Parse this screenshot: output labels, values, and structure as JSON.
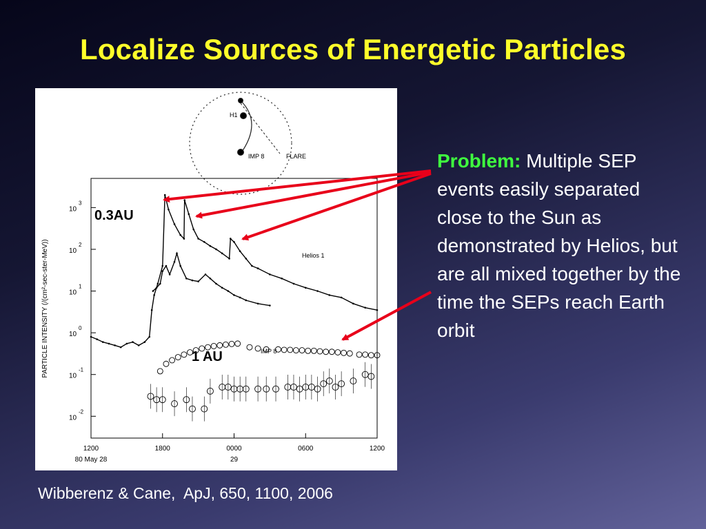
{
  "slide": {
    "title": "Localize Sources of Energetic Particles",
    "problem_label": "Problem:",
    "problem_text": " Multiple SEP events easily separated close to the Sun as demonstrated by Helios, but are all mixed together by the time the SEPs reach Earth orbit",
    "citation": "Wibberenz & Cane,  ApJ, 650, 1100, 2006",
    "colors": {
      "title": "#ffff2a",
      "problem_label": "#3fff3f",
      "arrow": "#e8001a"
    }
  },
  "figure": {
    "callout_03": "0.3AU",
    "callout_1": "1 AU",
    "helios_label": "Helios 1",
    "imp_label": "IMP 8",
    "inset": {
      "labels": {
        "h1": "H1",
        "imp8": "IMP 8",
        "flare": "FLARE"
      }
    }
  },
  "chart_data": {
    "type": "line",
    "ylabel": "PARTICLE INTENSITY (/(cm²-sec-ster-MeV))",
    "xlabel": "",
    "y_scale": "log",
    "ylim": [
      0.003,
      5000
    ],
    "x_unit": "hours from 1200 UT 80 May 28",
    "xlim": [
      0,
      24
    ],
    "x_ticks": [
      {
        "x": 0,
        "label": "1200",
        "sub": "80 May 28"
      },
      {
        "x": 6,
        "label": "1800",
        "sub": ""
      },
      {
        "x": 12,
        "label": "0000",
        "sub": "29"
      },
      {
        "x": 18,
        "label": "0600",
        "sub": ""
      },
      {
        "x": 24,
        "label": "1200",
        "sub": ""
      }
    ],
    "y_ticks": [
      {
        "value": 1000,
        "base": "10",
        "exp": "3"
      },
      {
        "value": 100,
        "base": "10",
        "exp": "2"
      },
      {
        "value": 10,
        "base": "10",
        "exp": "1"
      },
      {
        "value": 1,
        "base": "10",
        "exp": "0"
      },
      {
        "value": 0.1,
        "base": "10",
        "exp": "-1"
      },
      {
        "value": 0.01,
        "base": "10",
        "exp": "-2"
      }
    ],
    "series": [
      {
        "name": "Helios 1",
        "x": [
          0,
          0.5,
          1,
          1.5,
          2,
          2.5,
          3,
          3.5,
          4,
          4.5,
          4.9,
          5.1,
          5.3,
          5.6,
          6,
          6.2,
          6.5,
          7,
          7.5,
          7.8,
          7.85,
          8.2,
          8.6,
          9,
          9.5,
          10,
          10.5,
          11,
          11.6,
          11.7,
          12,
          12.5,
          13,
          13.5,
          14,
          15,
          16,
          17,
          18,
          19,
          20,
          21,
          22,
          23,
          24
        ],
        "y": [
          0.8,
          0.7,
          0.6,
          0.55,
          0.5,
          0.45,
          0.55,
          0.6,
          0.5,
          0.6,
          0.8,
          3.5,
          8,
          15,
          40,
          2000,
          900,
          400,
          220,
          180,
          1500,
          700,
          300,
          180,
          150,
          120,
          100,
          80,
          60,
          180,
          150,
          90,
          60,
          40,
          35,
          25,
          20,
          15,
          12,
          10,
          8,
          7,
          5,
          4,
          3.5
        ]
      },
      {
        "name": "",
        "x": [
          5.2,
          5.5,
          5.8,
          6,
          6.3,
          6.6,
          7,
          7.2,
          7.5,
          8,
          8.5,
          9,
          9.6,
          10,
          10.5,
          11,
          11.5,
          12,
          12.5,
          13,
          14,
          15
        ],
        "y": [
          10,
          12,
          15,
          30,
          40,
          25,
          50,
          80,
          40,
          20,
          18,
          17,
          25,
          20,
          15,
          12,
          10,
          8,
          7,
          6,
          5,
          4.5
        ]
      },
      {
        "name": "IMP 8",
        "x": [
          5.8,
          6.3,
          6.8,
          7.3,
          7.8,
          8.3,
          8.8,
          9.3,
          9.8,
          10.3,
          10.8,
          11.3,
          11.8,
          12.3,
          13.3,
          14,
          14.7,
          15.7,
          16.2,
          16.7,
          17.2,
          17.7,
          18.2,
          18.7,
          19.2,
          19.7,
          20.2,
          20.7,
          21.2,
          21.7,
          22.5,
          23,
          23.5,
          24
        ],
        "y": [
          0.12,
          0.18,
          0.22,
          0.26,
          0.3,
          0.34,
          0.38,
          0.42,
          0.45,
          0.48,
          0.5,
          0.52,
          0.54,
          0.55,
          0.45,
          0.42,
          0.4,
          0.4,
          0.39,
          0.39,
          0.38,
          0.38,
          0.37,
          0.37,
          0.36,
          0.35,
          0.35,
          0.34,
          0.33,
          0.32,
          0.3,
          0.3,
          0.29,
          0.29
        ]
      },
      {
        "name": "",
        "x": [
          5,
          5.5,
          6,
          7,
          8,
          8.5,
          9.5,
          10,
          11,
          11.5,
          12,
          12.5,
          13,
          14,
          14.7,
          15.5,
          16.5,
          17,
          17.5,
          18,
          18.5,
          19,
          19.5,
          20,
          20.5,
          21,
          22,
          23,
          23.5
        ],
        "y": [
          0.03,
          0.025,
          0.025,
          0.02,
          0.025,
          0.015,
          0.015,
          0.04,
          0.05,
          0.05,
          0.045,
          0.045,
          0.045,
          0.045,
          0.045,
          0.045,
          0.05,
          0.05,
          0.045,
          0.05,
          0.05,
          0.045,
          0.06,
          0.07,
          0.05,
          0.06,
          0.07,
          0.1,
          0.09
        ]
      }
    ],
    "grid": false,
    "legend": "none"
  }
}
